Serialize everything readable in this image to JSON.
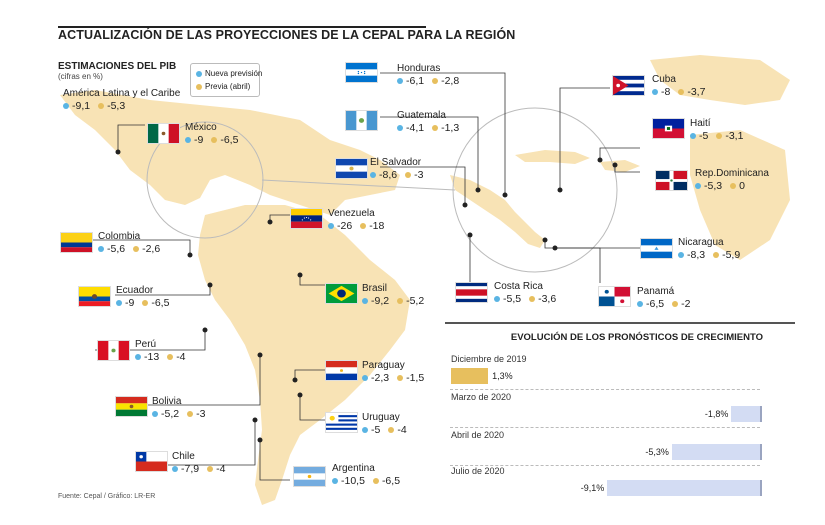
{
  "title": "ACTUALIZACIÓN DE LAS PROYECCIONES DE LA CEPAL PARA LA REGIÓN",
  "subtitle": "ESTIMACIONES DEL PIB",
  "subtitle_unit": "(cifras en %)",
  "legend": {
    "new": "Nueva previsión",
    "prev": "Previa (abril)"
  },
  "colors": {
    "new": "#5ab4e3",
    "prev": "#e7bf5e",
    "land": "#f8e3b5",
    "bar_negative": "#d3dcf3",
    "bar_positive": "#e7bf5e"
  },
  "footer": "Fuente: Cepal / Gráfico: LR-ER",
  "countries": [
    {
      "name": "América Latina y el Caribe",
      "new": "-9,1",
      "prev": "-5,3",
      "flag": "none"
    },
    {
      "name": "México",
      "new": "-9",
      "prev": "-6,5",
      "flag": "mexico"
    },
    {
      "name": "Honduras",
      "new": "-6,1",
      "prev": "-2,8",
      "flag": "honduras"
    },
    {
      "name": "Guatemala",
      "new": "-4,1",
      "prev": "-1,3",
      "flag": "guatemala"
    },
    {
      "name": "El Salvador",
      "new": "-8,6",
      "prev": "-3",
      "flag": "elsalvador"
    },
    {
      "name": "Cuba",
      "new": "-8",
      "prev": "-3,7",
      "flag": "cuba"
    },
    {
      "name": "Haití",
      "new": "-5",
      "prev": "-3,1",
      "flag": "haiti"
    },
    {
      "name": "Rep.Dominicana",
      "new": "-5,3",
      "prev": "0",
      "flag": "dominicana"
    },
    {
      "name": "Nicaragua",
      "new": "-8,3",
      "prev": "-5,9",
      "flag": "nicaragua"
    },
    {
      "name": "Costa Rica",
      "new": "-5,5",
      "prev": "-3,6",
      "flag": "costarica"
    },
    {
      "name": "Panamá",
      "new": "-6,5",
      "prev": "-2",
      "flag": "panama"
    },
    {
      "name": "Venezuela",
      "new": "-26",
      "prev": "-18",
      "flag": "venezuela"
    },
    {
      "name": "Colombia",
      "new": "-5,6",
      "prev": "-2,6",
      "flag": "colombia"
    },
    {
      "name": "Ecuador",
      "new": "-9",
      "prev": "-6,5",
      "flag": "ecuador"
    },
    {
      "name": "Perú",
      "new": "-13",
      "prev": "-4",
      "flag": "peru"
    },
    {
      "name": "Bolivia",
      "new": "-5,2",
      "prev": "-3",
      "flag": "bolivia"
    },
    {
      "name": "Chile",
      "new": "-7,9",
      "prev": "-4",
      "flag": "chile"
    },
    {
      "name": "Brasil",
      "new": "-9,2",
      "prev": "-5,2",
      "flag": "brasil"
    },
    {
      "name": "Paraguay",
      "new": "-2,3",
      "prev": "-1,5",
      "flag": "paraguay"
    },
    {
      "name": "Uruguay",
      "new": "-5",
      "prev": "-4",
      "flag": "uruguay"
    },
    {
      "name": "Argentina",
      "new": "-10,5",
      "prev": "-6,5",
      "flag": "argentina"
    }
  ],
  "chart_data": {
    "type": "bar",
    "title": "EVOLUCIÓN DE LOS PRONÓSTICOS DE CRECIMIENTO",
    "categories": [
      "Diciembre de 2019",
      "Marzo de 2020",
      "Abril de 2020",
      "Julio de 2020"
    ],
    "values": [
      1.3,
      -1.8,
      -5.3,
      -9.1
    ],
    "value_labels": [
      "1,3%",
      "-1,8%",
      "-5,3%",
      "-9,1%"
    ],
    "xlabel": "",
    "ylabel": "",
    "grid": false
  }
}
